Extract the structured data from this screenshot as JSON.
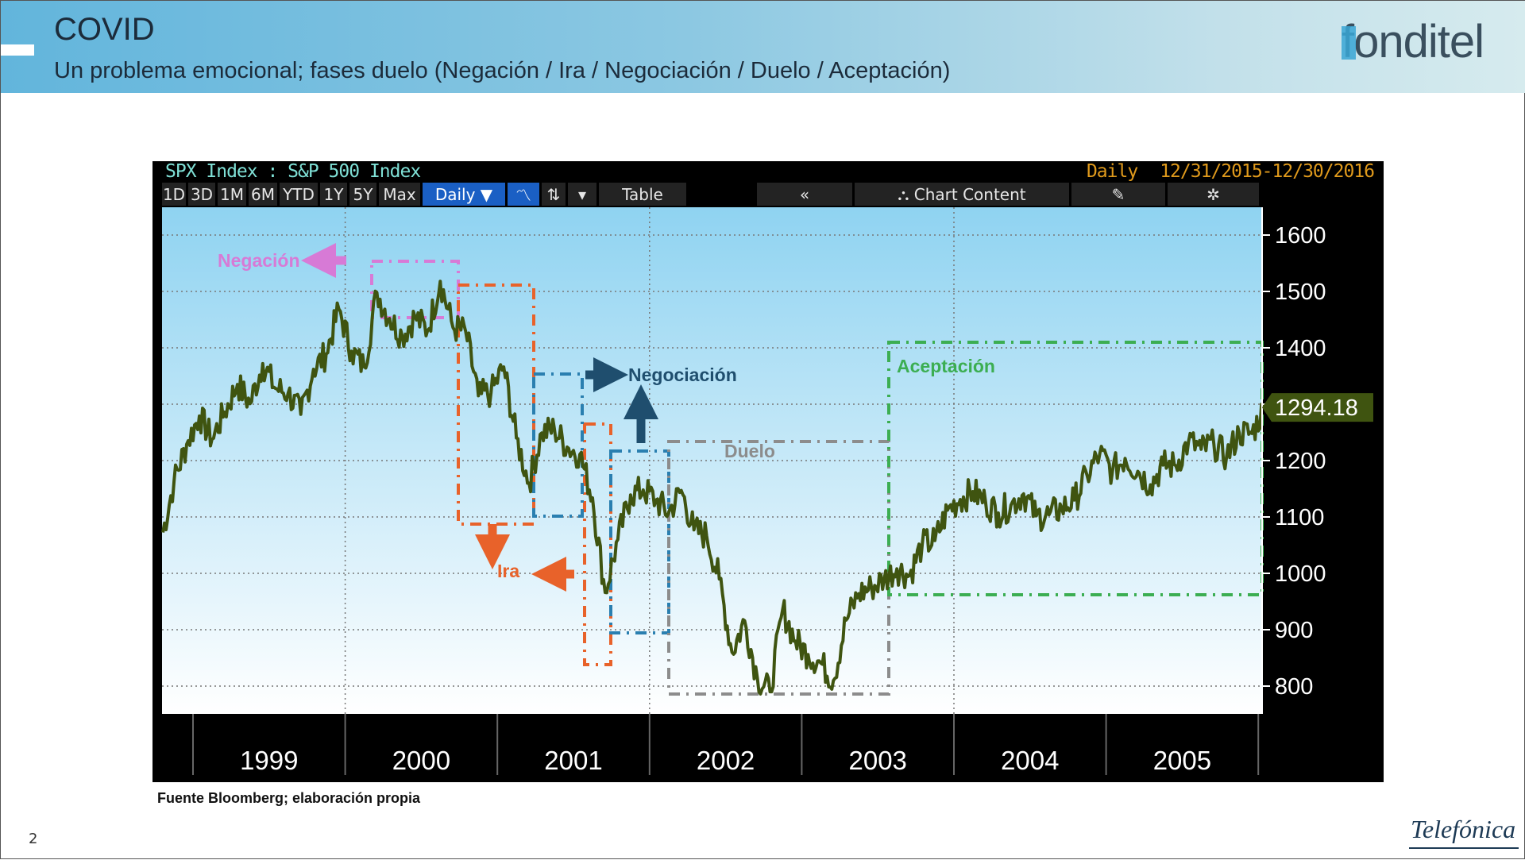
{
  "header": {
    "title": "COVID",
    "subtitle": "Un problema emocional; fases duelo (Negación / Ira / Negociación / Duelo / Aceptación)",
    "logo": "fonditel"
  },
  "terminal": {
    "title": "SPX Index : S&P 500 Index",
    "frequency": "Daily",
    "range": "12/31/2015-12/30/2016",
    "toolbar": [
      "1D",
      "3D",
      "1M",
      "6M",
      "YTD",
      "1Y",
      "5Y",
      "Max",
      "Daily ▼",
      "〽",
      "⇅",
      "▾",
      "Table",
      "«",
      "⛬ Chart Content",
      "✎",
      "✲"
    ],
    "active_buttons": [
      8,
      9
    ]
  },
  "chart_data": {
    "type": "line",
    "title": "",
    "xlabel": "",
    "ylabel": "",
    "ylim": [
      760,
      1650
    ],
    "yticks": [
      800,
      900,
      1000,
      1100,
      1200,
      1300,
      1400,
      1500,
      1600
    ],
    "ytick_labels": [
      "800",
      "900",
      "1000",
      "1100",
      "1200",
      "",
      "1400",
      "1500",
      "1600"
    ],
    "xtick_labels": [
      "1999",
      "2000",
      "2001",
      "2002",
      "2003",
      "2004",
      "2005"
    ],
    "grid": true,
    "line_color": "#3f5410",
    "last_value": "1294.18",
    "series": [
      {
        "x": [
          "1998-10",
          "1998-11",
          "1998-12",
          "1999-01",
          "1999-02",
          "1999-03",
          "1999-04",
          "1999-05",
          "1999-06",
          "1999-07",
          "1999-08",
          "1999-09",
          "1999-10",
          "1999-11",
          "1999-12",
          "2000-01",
          "2000-02",
          "2000-03",
          "2000-04",
          "2000-05",
          "2000-06",
          "2000-07",
          "2000-08",
          "2000-09",
          "2000-10",
          "2000-11",
          "2000-12",
          "2001-01",
          "2001-02",
          "2001-03",
          "2001-04",
          "2001-05",
          "2001-06",
          "2001-07",
          "2001-08",
          "2001-09",
          "2001-10",
          "2001-11",
          "2001-12",
          "2002-01",
          "2002-02",
          "2002-03",
          "2002-04",
          "2002-05",
          "2002-06",
          "2002-07",
          "2002-08",
          "2002-09",
          "2002-10",
          "2002-11",
          "2002-12",
          "2003-01",
          "2003-02",
          "2003-03",
          "2003-04",
          "2003-05",
          "2003-06",
          "2003-07",
          "2003-08",
          "2003-09",
          "2003-10",
          "2003-11",
          "2003-12",
          "2004-01",
          "2004-02",
          "2004-03",
          "2004-04",
          "2004-05",
          "2004-06",
          "2004-07",
          "2004-08",
          "2004-09",
          "2004-10",
          "2004-11",
          "2004-12",
          "2005-01",
          "2005-02",
          "2005-03",
          "2005-04",
          "2005-05",
          "2005-06",
          "2005-07",
          "2005-08",
          "2005-09",
          "2005-10",
          "2005-11",
          "2005-12",
          "2006-01"
        ],
        "values": [
          1060,
          1163,
          1229,
          1279,
          1238,
          1286,
          1335,
          1301,
          1372,
          1328,
          1320,
          1282,
          1362,
          1389,
          1469,
          1394,
          1366,
          1498,
          1452,
          1421,
          1455,
          1431,
          1518,
          1436,
          1429,
          1315,
          1320,
          1366,
          1240,
          1160,
          1249,
          1256,
          1224,
          1211,
          1134,
          966,
          1060,
          1139,
          1148,
          1130,
          1107,
          1147,
          1077,
          1067,
          990,
          860,
          916,
          815,
          790,
          936,
          880,
          856,
          841,
          810,
          917,
          964,
          975,
          990,
          1008,
          996,
          1051,
          1058,
          1112,
          1131,
          1145,
          1126,
          1107,
          1121,
          1141,
          1102,
          1104,
          1115,
          1130,
          1174,
          1212,
          1181,
          1204,
          1181,
          1157,
          1192,
          1191,
          1234,
          1220,
          1229,
          1207,
          1249,
          1248,
          1294.18
        ]
      }
    ]
  },
  "annotations": {
    "negacion": "Negación",
    "ira": "Ira",
    "negociacion": "Negociación",
    "duelo": "Duelo",
    "aceptacion": "Aceptación",
    "colors": {
      "negacion": "#d77ad6",
      "ira": "#e8622a",
      "negociacion": "#2a7fb0",
      "negociacion_label": "#1f4e6e",
      "duelo": "#8c8c8c",
      "aceptacion": "#3cae52"
    }
  },
  "footer": {
    "source": "Fuente Bloomberg; elaboración propia",
    "page": "2",
    "brand": "Telefónica"
  }
}
